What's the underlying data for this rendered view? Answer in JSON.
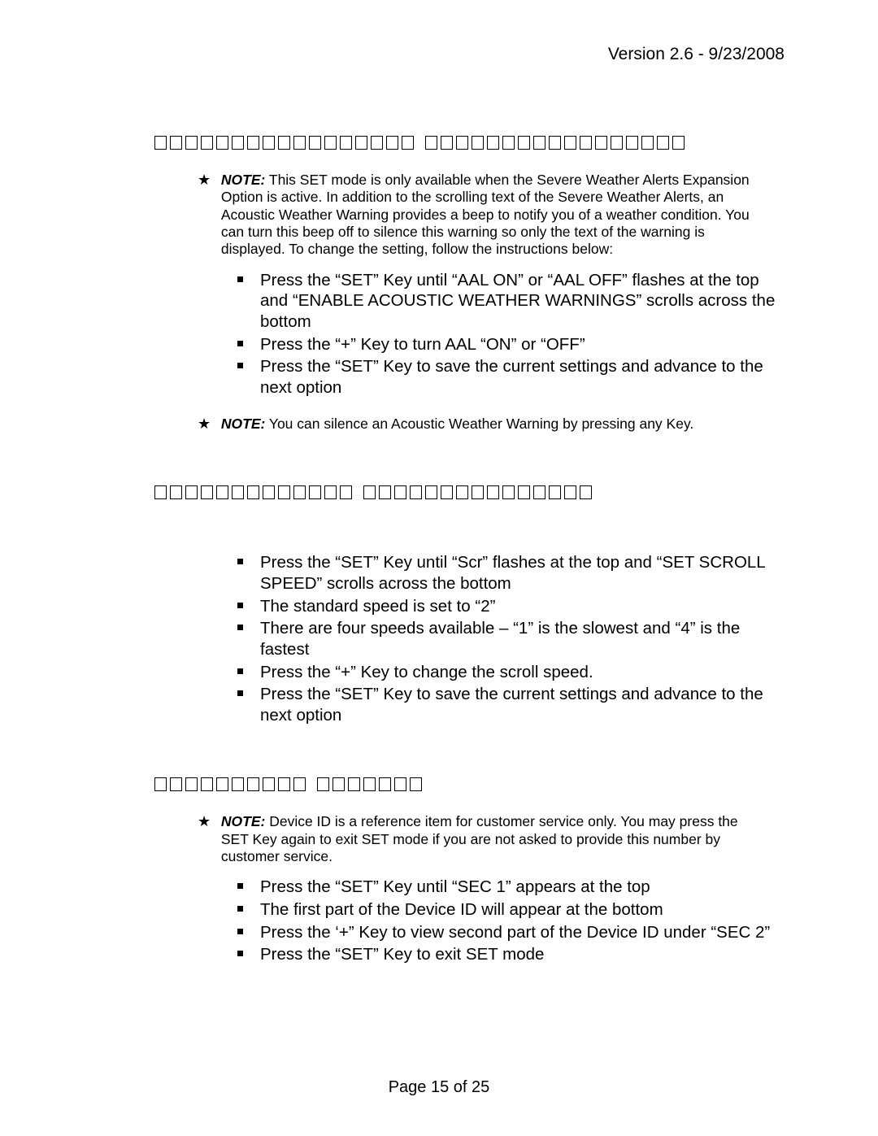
{
  "header": {
    "version_text": "Version 2.6 - 9/23/2008"
  },
  "footer": {
    "page_text": "Page 15 of 25"
  },
  "note_label": "NOTE:",
  "sections": {
    "s1": {
      "placeholder_count_a": 17,
      "placeholder_count_b": 17,
      "note_text": "This SET mode is only available when the Severe Weather Alerts Expansion Option is active.  In addition to the scrolling text of the Severe Weather Alerts, an Acoustic Weather Warning provides a beep to notify you of a weather condition.  You can turn this beep off to silence this warning so only the text of the warning is displayed.  To change the setting, follow the instructions below:",
      "steps": [
        "Press the “SET” Key until “AAL    ON” or “AAL   OFF” flashes at the top and “ENABLE ACOUSTIC WEATHER WARNINGS” scrolls across the bottom",
        "Press the “+” Key to turn AAL “ON” or “OFF”",
        "Press the “SET” Key to save the current settings and advance to the next option"
      ],
      "note2_text": "You can silence an Acoustic Weather Warning by pressing any Key."
    },
    "s2": {
      "placeholder_count_a": 13,
      "placeholder_count_b": 15,
      "steps": [
        "Press the “SET” Key until “Scr” flashes at the top and “SET SCROLL SPEED” scrolls across the bottom",
        "The standard speed is set to “2”",
        "There are four speeds available – “1” is the slowest and “4” is the fastest",
        "Press the “+” Key to change the scroll speed.",
        "Press the “SET” Key to save the current settings and advance to the next option"
      ]
    },
    "s3": {
      "placeholder_count_a": 10,
      "placeholder_count_b": 7,
      "note_text": "Device ID is a reference item for customer service only.  You may press the  SET  Key again to exit SET mode if you are not asked to provide this number by customer service.",
      "steps": [
        "Press the “SET” Key until “SEC 1” appears at the top",
        "The first part of the Device ID will appear at the bottom",
        "Press the ‘+” Key to view second part of the Device ID under “SEC 2”",
        "Press the “SET” Key to exit SET mode"
      ]
    }
  },
  "style": {
    "font_family": "Arial",
    "body_fontsize_pt": 15,
    "note_fontsize_pt": 13,
    "text_color": "#000000",
    "background_color": "#ffffff",
    "star_glyph": "★",
    "bullet_shape": "square",
    "bullet_color": "#000000"
  }
}
